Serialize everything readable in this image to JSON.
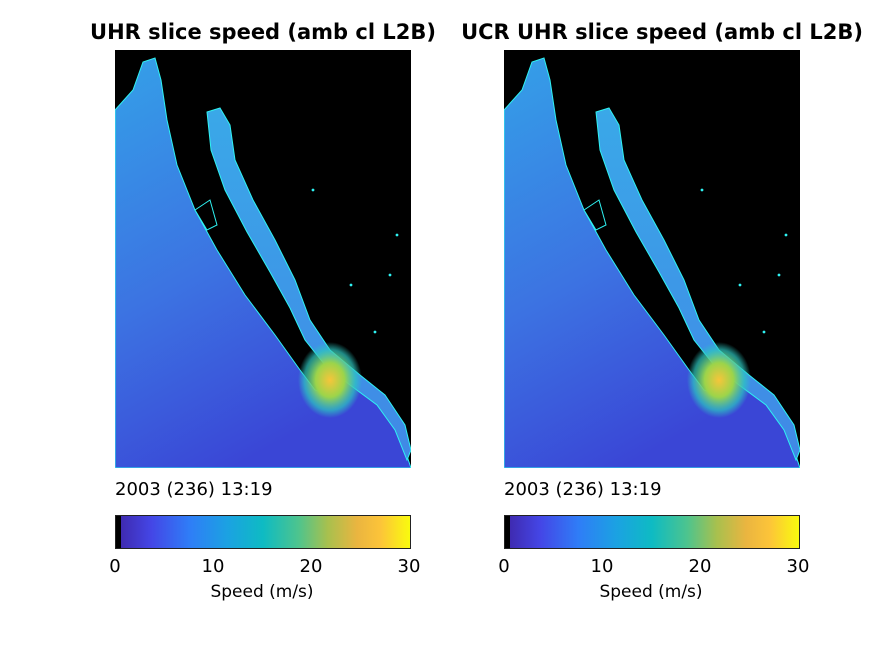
{
  "panels": [
    {
      "title": "UHR slice speed (amb cl L2B)",
      "timestamp": "2003 (236) 13:19",
      "colorbar": {
        "label": "Speed (m/s)",
        "ticks": [
          "0",
          "10",
          "20",
          "30"
        ],
        "range": [
          0,
          30
        ]
      }
    },
    {
      "title": "UCR UHR slice speed (amb cl L2B)",
      "timestamp": "2003 (236) 13:19",
      "colorbar": {
        "label": "Speed (m/s)",
        "ticks": [
          "0",
          "10",
          "20",
          "30"
        ],
        "range": [
          0,
          30
        ]
      }
    }
  ],
  "colors": {
    "background_land": "#000000",
    "coastline": "#2ef2f2",
    "low_speed": "#3a46d6",
    "mid_speed": "#34a0e8",
    "high_speed": "#f6c53a"
  }
}
